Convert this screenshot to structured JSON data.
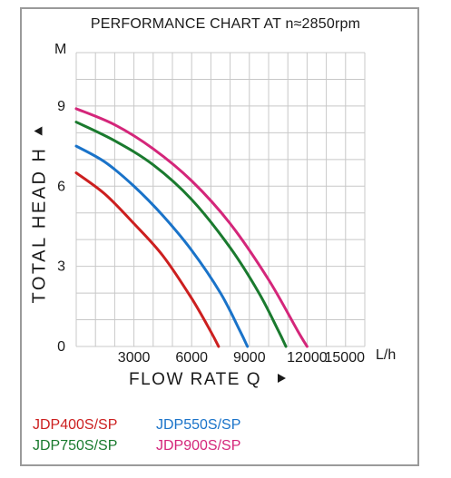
{
  "chart_data": {
    "type": "line",
    "title": "PERFORMANCE CHART AT n≈2850rpm",
    "xlabel": "FLOW RATE Q",
    "ylabel": "TOTAL  HEAD H",
    "y_unit": "M",
    "x_unit": "L/h",
    "xlim": [
      0,
      15000
    ],
    "ylim": [
      0,
      11
    ],
    "x_ticks": [
      3000,
      6000,
      9000,
      12000,
      15000
    ],
    "x_tick_labels": [
      "3000",
      "6000",
      "9000",
      "12000",
      "15000"
    ],
    "y_ticks": [
      0,
      3,
      6,
      9
    ],
    "y_tick_labels": [
      "0",
      "3",
      "6",
      "9"
    ],
    "grid": true,
    "legend_position": "bottom",
    "series": [
      {
        "name": "JDP400S/SP",
        "color": "#cc1f1f",
        "x": [
          0,
          1500,
          3000,
          4500,
          6000,
          7000,
          7400
        ],
        "y": [
          6.5,
          5.7,
          4.6,
          3.4,
          1.8,
          0.55,
          0
        ]
      },
      {
        "name": "JDP550S/SP",
        "color": "#1a73c9",
        "x": [
          0,
          1500,
          3000,
          4500,
          6000,
          7500,
          8500,
          8900
        ],
        "y": [
          7.5,
          6.9,
          6.0,
          4.9,
          3.6,
          2.0,
          0.6,
          0
        ]
      },
      {
        "name": "JDP750S/SP",
        "color": "#1a7a2e",
        "x": [
          0,
          2000,
          4000,
          6000,
          8000,
          9500,
          10500,
          10900
        ],
        "y": [
          8.4,
          7.7,
          6.8,
          5.5,
          3.7,
          2.0,
          0.6,
          0
        ]
      },
      {
        "name": "JDP900S/SP",
        "color": "#d4267a",
        "x": [
          0,
          2000,
          4000,
          6000,
          8000,
          10000,
          11500,
          12000
        ],
        "y": [
          8.9,
          8.3,
          7.4,
          6.2,
          4.6,
          2.5,
          0.6,
          0
        ]
      }
    ]
  }
}
